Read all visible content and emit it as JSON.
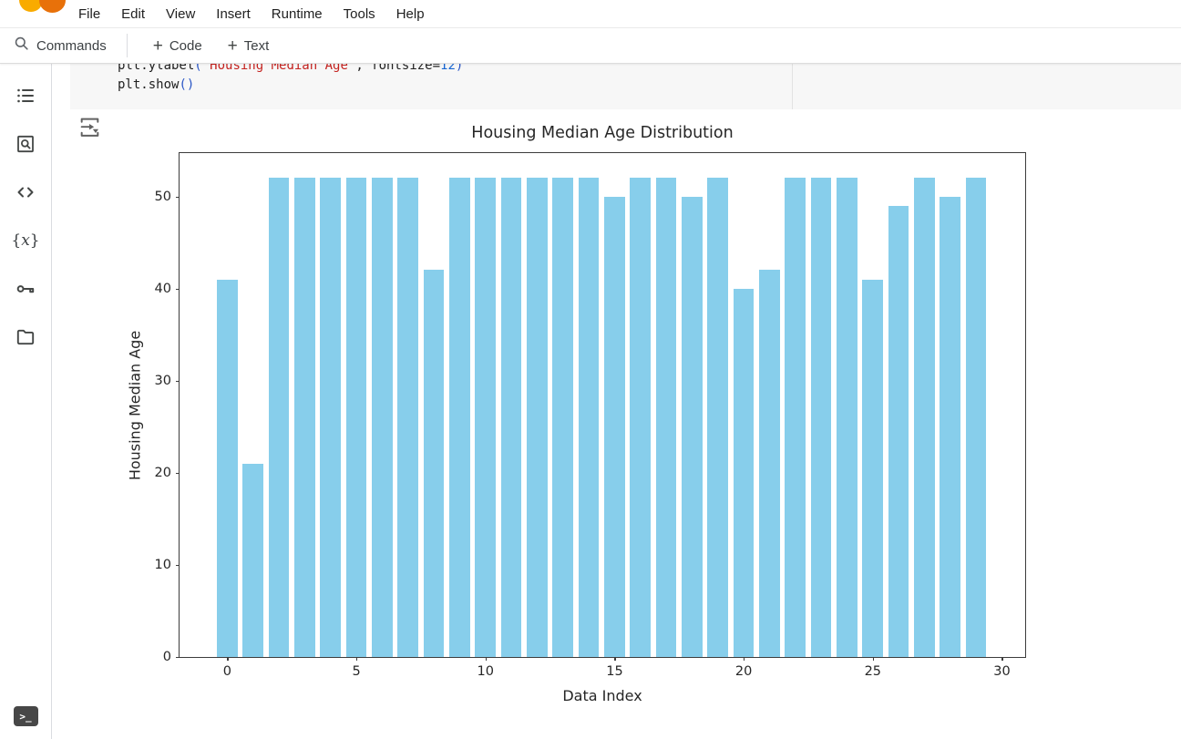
{
  "menubar": {
    "items": [
      "File",
      "Edit",
      "View",
      "Insert",
      "Runtime",
      "Tools",
      "Help"
    ],
    "logo_colors": {
      "left": "#F9AB00",
      "right": "#E8710A"
    }
  },
  "toolbar": {
    "commands_label": "Commands",
    "add_code_label": "Code",
    "add_text_label": "Text",
    "search_icon": "search-icon",
    "plus_icon": "+"
  },
  "sidebar": {
    "icons": [
      "table-of-contents",
      "find-and-replace",
      "code-snippets",
      "variables",
      "secrets",
      "files"
    ],
    "variables_glyph": "{x}",
    "bottom_icon": "terminal",
    "terminal_glyph": ">_"
  },
  "code_cell": {
    "lines": [
      {
        "clipped": true,
        "tokens": [
          {
            "t": "plt.ylabel",
            "c": "plain"
          },
          {
            "t": "(",
            "c": "bracket"
          },
          {
            "t": "\"Housing Median Age\"",
            "c": "string"
          },
          {
            "t": ", fontsize=",
            "c": "plain"
          },
          {
            "t": "12",
            "c": "number"
          },
          {
            "t": ")",
            "c": "bracket"
          }
        ]
      },
      {
        "clipped": false,
        "tokens": [
          {
            "t": "plt.show",
            "c": "plain"
          },
          {
            "t": "()",
            "c": "bracket"
          }
        ]
      }
    ],
    "output_icon": "cell-output-options-icon"
  },
  "chart_data": {
    "type": "bar",
    "title": "Housing Median Age Distribution",
    "xlabel": "Data Index",
    "ylabel": "Housing Median Age",
    "x": [
      0,
      1,
      2,
      3,
      4,
      5,
      6,
      7,
      8,
      9,
      10,
      11,
      12,
      13,
      14,
      15,
      16,
      17,
      18,
      19,
      20,
      21,
      22,
      23,
      24,
      25,
      26,
      27,
      28,
      29
    ],
    "values": [
      41,
      21,
      52,
      52,
      52,
      52,
      52,
      52,
      42,
      52,
      52,
      52,
      52,
      52,
      52,
      50,
      52,
      52,
      50,
      52,
      40,
      42,
      52,
      52,
      52,
      41,
      49,
      52,
      50,
      52
    ],
    "bar_color": "#87CEEB",
    "bar_width": 0.8,
    "xlim": [
      -1.85,
      30.9
    ],
    "ylim": [
      0,
      54.7
    ],
    "xticks": [
      0,
      5,
      10,
      15,
      20,
      25,
      30
    ],
    "yticks": [
      0,
      10,
      20,
      30,
      40,
      50
    ],
    "grid": false,
    "legend": null
  }
}
